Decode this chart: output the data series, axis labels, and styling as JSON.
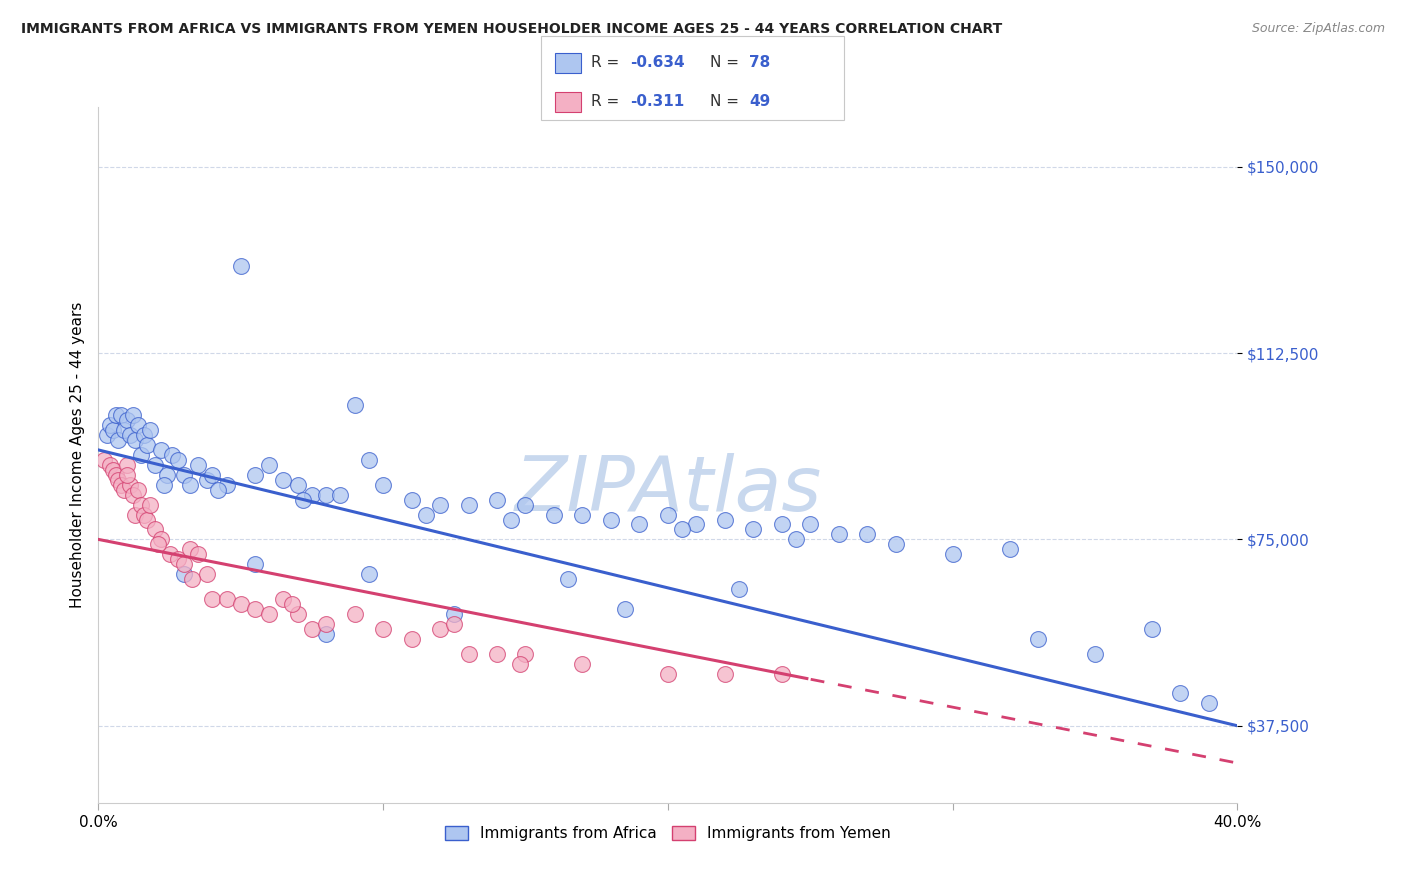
{
  "title": "IMMIGRANTS FROM AFRICA VS IMMIGRANTS FROM YEMEN HOUSEHOLDER INCOME AGES 25 - 44 YEARS CORRELATION CHART",
  "source": "Source: ZipAtlas.com",
  "ylabel": "Householder Income Ages 25 - 44 years",
  "y_ticks": [
    37500,
    75000,
    112500,
    150000
  ],
  "y_tick_labels": [
    "$37,500",
    "$75,000",
    "$112,500",
    "$150,000"
  ],
  "x_min": 0.0,
  "x_max": 40.0,
  "y_min": 22000,
  "y_max": 162000,
  "africa_color": "#aec6f0",
  "africa_line_color": "#3a5fcd",
  "yemen_color": "#f4b0c4",
  "yemen_line_color": "#d44070",
  "watermark": "ZIPAtlas",
  "watermark_color": "#c8d8ee",
  "legend_label_africa": "Immigrants from Africa",
  "legend_label_yemen": "Immigrants from Yemen",
  "africa_line_x0": 0.0,
  "africa_line_y0": 93000,
  "africa_line_x1": 40.0,
  "africa_line_y1": 37500,
  "yemen_line_x0": 0.0,
  "yemen_line_y0": 75000,
  "yemen_line_x1": 40.0,
  "yemen_line_y1": 30000,
  "yemen_solid_end": 25.0,
  "africa_x": [
    0.3,
    0.4,
    0.5,
    0.6,
    0.7,
    0.8,
    0.9,
    1.0,
    1.1,
    1.2,
    1.3,
    1.4,
    1.5,
    1.6,
    1.7,
    1.8,
    2.0,
    2.2,
    2.4,
    2.6,
    2.8,
    3.0,
    3.2,
    3.5,
    3.8,
    4.0,
    4.5,
    5.0,
    5.5,
    6.0,
    6.5,
    7.0,
    7.5,
    8.0,
    8.5,
    9.0,
    9.5,
    10.0,
    11.0,
    12.0,
    13.0,
    14.0,
    15.0,
    16.0,
    17.0,
    18.0,
    19.0,
    20.0,
    21.0,
    22.0,
    23.0,
    24.0,
    25.0,
    26.0,
    27.0,
    28.0,
    30.0,
    32.0,
    33.0,
    35.0,
    37.0,
    38.0,
    39.0,
    4.2,
    2.3,
    7.2,
    11.5,
    14.5,
    20.5,
    24.5,
    3.0,
    5.5,
    9.5,
    16.5,
    22.5,
    8.0,
    12.5,
    18.5
  ],
  "africa_y": [
    96000,
    98000,
    97000,
    100000,
    95000,
    100000,
    97000,
    99000,
    96000,
    100000,
    95000,
    98000,
    92000,
    96000,
    94000,
    97000,
    90000,
    93000,
    88000,
    92000,
    91000,
    88000,
    86000,
    90000,
    87000,
    88000,
    86000,
    130000,
    88000,
    90000,
    87000,
    86000,
    84000,
    84000,
    84000,
    102000,
    91000,
    86000,
    83000,
    82000,
    82000,
    83000,
    82000,
    80000,
    80000,
    79000,
    78000,
    80000,
    78000,
    79000,
    77000,
    78000,
    78000,
    76000,
    76000,
    74000,
    72000,
    73000,
    55000,
    52000,
    57000,
    44000,
    42000,
    85000,
    86000,
    83000,
    80000,
    79000,
    77000,
    75000,
    68000,
    70000,
    68000,
    67000,
    65000,
    56000,
    60000,
    61000
  ],
  "yemen_x": [
    0.2,
    0.4,
    0.5,
    0.6,
    0.7,
    0.8,
    0.9,
    1.0,
    1.1,
    1.2,
    1.3,
    1.4,
    1.5,
    1.6,
    1.7,
    1.8,
    2.0,
    2.2,
    2.5,
    2.8,
    3.0,
    3.2,
    3.5,
    3.8,
    4.0,
    4.5,
    5.0,
    5.5,
    6.0,
    6.5,
    7.0,
    7.5,
    8.0,
    9.0,
    10.0,
    11.0,
    12.0,
    13.0,
    14.0,
    15.0,
    17.0,
    20.0,
    22.0,
    24.0,
    1.0,
    2.1,
    3.3,
    6.8,
    12.5,
    14.8
  ],
  "yemen_y": [
    91000,
    90000,
    89000,
    88000,
    87000,
    86000,
    85000,
    90000,
    86000,
    84000,
    80000,
    85000,
    82000,
    80000,
    79000,
    82000,
    77000,
    75000,
    72000,
    71000,
    70000,
    73000,
    72000,
    68000,
    63000,
    63000,
    62000,
    61000,
    60000,
    63000,
    60000,
    57000,
    58000,
    60000,
    57000,
    55000,
    57000,
    52000,
    52000,
    52000,
    50000,
    48000,
    48000,
    48000,
    88000,
    74000,
    67000,
    62000,
    58000,
    50000
  ]
}
